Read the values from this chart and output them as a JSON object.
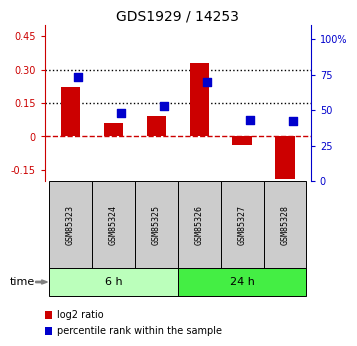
{
  "title": "GDS1929 / 14253",
  "samples": [
    "GSM85323",
    "GSM85324",
    "GSM85325",
    "GSM85326",
    "GSM85327",
    "GSM85328"
  ],
  "log2_ratio": [
    0.22,
    0.06,
    0.09,
    0.33,
    -0.04,
    -0.19
  ],
  "percentile_rank": [
    73,
    48,
    53,
    70,
    43,
    42
  ],
  "ylim_left": [
    -0.2,
    0.5
  ],
  "ylim_right": [
    0,
    110
  ],
  "yticks_left": [
    -0.15,
    0.0,
    0.15,
    0.3,
    0.45
  ],
  "yticks_right": [
    0,
    25,
    50,
    75,
    100
  ],
  "hlines": [
    0.15,
    0.3
  ],
  "groups": [
    {
      "label": "6 h",
      "indices": [
        0,
        1,
        2
      ],
      "color": "#bbffbb"
    },
    {
      "label": "24 h",
      "indices": [
        3,
        4,
        5
      ],
      "color": "#44ee44"
    }
  ],
  "bar_color": "#cc0000",
  "dot_color": "#0000cc",
  "zero_line_color": "#cc0000",
  "hline_color": "black",
  "bar_width": 0.45,
  "dot_size": 28,
  "dot_marker": "s",
  "legend_items": [
    {
      "label": "log2 ratio",
      "color": "#cc0000"
    },
    {
      "label": "percentile rank within the sample",
      "color": "#0000cc"
    }
  ],
  "time_label": "time",
  "sample_bg_color": "#cccccc",
  "title_fontsize": 10,
  "tick_fontsize": 7,
  "label_fontsize": 7
}
